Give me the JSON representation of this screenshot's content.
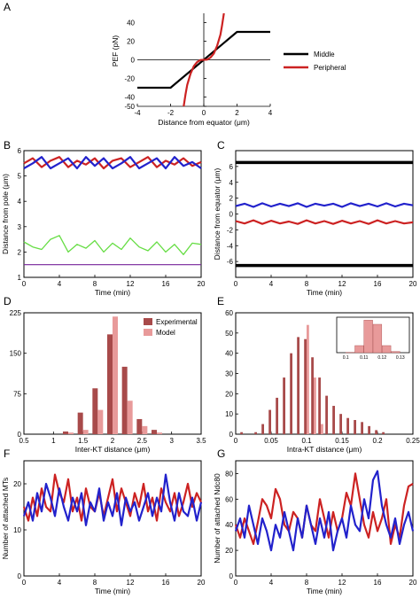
{
  "chart_data": [
    {
      "panel": "A",
      "type": "line",
      "xlabel": "Distance from equator (μm)",
      "ylabel": "PEF (pN)",
      "xlim": [
        -4,
        4
      ],
      "ylim": [
        -50,
        50
      ],
      "xticks": [
        "-4",
        "-2",
        "0",
        "2",
        "4"
      ],
      "yticks": [
        "40",
        "20",
        "0",
        "-20",
        "-40",
        "-50"
      ],
      "legend_position": "right",
      "series": [
        {
          "name": "Middle",
          "color": "#000000",
          "x": [
            -4,
            -2,
            2,
            4
          ],
          "y": [
            -30,
            -30,
            30,
            30
          ]
        },
        {
          "name": "Peripheral",
          "color": "#cc2222",
          "x": [
            -1.21,
            -1.1,
            -1.0,
            -0.8,
            -0.6,
            -0.4,
            -0.2,
            0,
            0.2,
            0.4,
            0.6,
            0.8,
            1.0,
            1.1,
            1.21
          ],
          "y": [
            -50,
            -37,
            -27,
            -15,
            -6.8,
            -2.4,
            -0.2,
            0,
            0.2,
            2.4,
            6.8,
            15,
            27,
            37,
            50
          ]
        }
      ]
    },
    {
      "panel": "B",
      "type": "line",
      "xlabel": "Time (min)",
      "ylabel": "Distance from pole (μm)",
      "xlim": [
        0,
        20
      ],
      "ylim": [
        1,
        6
      ],
      "xticks": [
        "0",
        "4",
        "8",
        "12",
        "16",
        "20"
      ],
      "yticks": [
        "6",
        "5",
        "4",
        "3",
        "2",
        "1"
      ],
      "grid": false,
      "series": [
        {
          "color": "#cc2222",
          "x": [
            0,
            1,
            2,
            3,
            4,
            5,
            6,
            7,
            8,
            9,
            10,
            11,
            12,
            13,
            14,
            15,
            16,
            17,
            18,
            19,
            20
          ],
          "y": [
            5.5,
            5.7,
            5.35,
            5.6,
            5.75,
            5.35,
            5.6,
            5.45,
            5.7,
            5.3,
            5.6,
            5.7,
            5.35,
            5.55,
            5.75,
            5.35,
            5.6,
            5.45,
            5.7,
            5.4,
            5.55
          ]
        },
        {
          "color": "#2222cc",
          "x": [
            0,
            1,
            2,
            3,
            4,
            5,
            6,
            7,
            8,
            9,
            10,
            11,
            12,
            13,
            14,
            15,
            16,
            17,
            18,
            19,
            20
          ],
          "y": [
            5.3,
            5.5,
            5.75,
            5.3,
            5.5,
            5.7,
            5.3,
            5.75,
            5.4,
            5.7,
            5.3,
            5.5,
            5.75,
            5.3,
            5.5,
            5.7,
            5.3,
            5.75,
            5.4,
            5.55,
            5.3
          ]
        },
        {
          "color": "#66dd44",
          "x": [
            0,
            1,
            2,
            3,
            4,
            5,
            6,
            7,
            8,
            9,
            10,
            11,
            12,
            13,
            14,
            15,
            16,
            17,
            18,
            19,
            20
          ],
          "y": [
            2.4,
            2.2,
            2.1,
            2.5,
            2.65,
            2.0,
            2.3,
            2.15,
            2.45,
            2.0,
            2.35,
            2.1,
            2.55,
            2.2,
            2.05,
            2.4,
            2.0,
            2.3,
            1.9,
            2.35,
            2.3
          ]
        },
        {
          "color": "#772299",
          "x": [
            0,
            20
          ],
          "y": [
            1.5,
            1.5
          ]
        }
      ]
    },
    {
      "panel": "C",
      "type": "line",
      "xlabel": "Time (min)",
      "ylabel": "Distance from equator (μm)",
      "xlim": [
        0,
        20
      ],
      "ylim": [
        -8,
        8
      ],
      "xticks": [
        "0",
        "4",
        "8",
        "12",
        "16",
        "20"
      ],
      "yticks": [
        "6",
        "4",
        "2",
        "0",
        "-2",
        "-4",
        "-6"
      ],
      "series": [
        {
          "color": "#000000",
          "x": [
            0,
            20
          ],
          "y": [
            6.5,
            6.5
          ]
        },
        {
          "color": "#000000",
          "x": [
            0,
            20
          ],
          "y": [
            -6.5,
            -6.5
          ]
        },
        {
          "color": "#2222cc",
          "x": [
            0,
            1,
            2,
            3,
            4,
            5,
            6,
            7,
            8,
            9,
            10,
            11,
            12,
            13,
            14,
            15,
            16,
            17,
            18,
            19,
            20
          ],
          "y": [
            1.0,
            1.3,
            0.9,
            1.35,
            0.95,
            1.3,
            1.0,
            1.35,
            0.9,
            1.3,
            1.05,
            1.3,
            0.9,
            1.35,
            1.0,
            1.3,
            0.95,
            1.35,
            0.95,
            1.3,
            1.1
          ]
        },
        {
          "color": "#cc2222",
          "x": [
            0,
            1,
            2,
            3,
            4,
            5,
            6,
            7,
            8,
            9,
            10,
            11,
            12,
            13,
            14,
            15,
            16,
            17,
            18,
            19,
            20
          ],
          "y": [
            -0.9,
            -1.2,
            -0.8,
            -1.25,
            -0.85,
            -1.2,
            -0.95,
            -1.25,
            -0.8,
            -1.2,
            -0.9,
            -1.25,
            -0.85,
            -1.2,
            -0.9,
            -1.25,
            -0.8,
            -1.2,
            -0.9,
            -1.2,
            -1.05
          ]
        }
      ]
    },
    {
      "panel": "D",
      "type": "bar",
      "xlabel": "Inter-KT distance (μm)",
      "ylabel": "",
      "xlim": [
        0.5,
        3.5
      ],
      "ylim": [
        0,
        225
      ],
      "xticks": [
        "0.5",
        "1",
        "1.5",
        "2",
        "2.5",
        "3",
        "3.5"
      ],
      "yticks": [
        "225",
        "150",
        "75",
        "0"
      ],
      "legend_position": "top-right",
      "bins": [
        1.25,
        1.5,
        1.75,
        2.0,
        2.25,
        2.5,
        2.75
      ],
      "series": [
        {
          "name": "Experimental",
          "color": "#a84a4a",
          "values": [
            5,
            40,
            85,
            185,
            125,
            28,
            8
          ]
        },
        {
          "name": "Model",
          "color": "#e89a9a",
          "values": [
            3,
            8,
            45,
            218,
            62,
            15,
            3
          ]
        }
      ]
    },
    {
      "panel": "E",
      "type": "bar",
      "xlabel": "Intra-KT distance (μm)",
      "ylabel": "",
      "xlim": [
        0,
        0.25
      ],
      "ylim": [
        0,
        60
      ],
      "xticks": [
        "0",
        "0.05",
        "0.1",
        "0.15",
        "0.2",
        "0.25"
      ],
      "yticks": [
        "60",
        "50",
        "40",
        "30",
        "20",
        "10",
        "0"
      ],
      "bins": [
        0.01,
        0.02,
        0.03,
        0.04,
        0.05,
        0.06,
        0.07,
        0.08,
        0.09,
        0.1,
        0.11,
        0.12,
        0.13,
        0.14,
        0.15,
        0.16,
        0.17,
        0.18,
        0.19,
        0.2,
        0.21
      ],
      "series": [
        {
          "name": "Experimental",
          "color": "#a84a4a",
          "values": [
            1,
            0,
            1,
            5,
            12,
            18,
            28,
            40,
            48,
            47,
            38,
            28,
            19,
            14,
            10,
            8,
            7,
            6,
            4,
            2,
            1
          ]
        },
        {
          "name": "Model",
          "color": "#e89a9a",
          "values": [
            0,
            0,
            0,
            0,
            0,
            0,
            0,
            0,
            0,
            54,
            28,
            5,
            0,
            0,
            0,
            0,
            0,
            0,
            0,
            0,
            0
          ]
        }
      ],
      "inset": {
        "xticks": [
          "0.1",
          "0.11",
          "0.12",
          "0.13"
        ],
        "bins": [
          0.1,
          0.105,
          0.11,
          0.115,
          0.12,
          0.125
        ],
        "values": [
          0.5,
          12,
          55,
          48,
          12,
          2
        ]
      }
    },
    {
      "panel": "F",
      "type": "line",
      "xlabel": "Time (min)",
      "ylabel": "Number of attached MTs",
      "xlim": [
        0,
        20
      ],
      "ylim": [
        0,
        25
      ],
      "xticks": [
        "0",
        "4",
        "8",
        "12",
        "16",
        "20"
      ],
      "yticks": [
        "20",
        "10",
        "0"
      ],
      "series": [
        {
          "color": "#cc2222",
          "x": [
            0,
            0.5,
            1,
            1.5,
            2,
            2.5,
            3,
            3.5,
            4,
            4.5,
            5,
            5.5,
            6,
            6.5,
            7,
            7.5,
            8,
            8.5,
            9,
            9.5,
            10,
            10.5,
            11,
            11.5,
            12,
            12.5,
            13,
            13.5,
            14,
            14.5,
            15,
            15.5,
            16,
            16.5,
            17,
            17.5,
            18,
            18.5,
            19,
            19.5,
            20
          ],
          "y": [
            15,
            12,
            17,
            13,
            19,
            15,
            14,
            22,
            18,
            16,
            21,
            14,
            17,
            12,
            19,
            15,
            14,
            18,
            13,
            17,
            21,
            14,
            19,
            16,
            13,
            18,
            15,
            20,
            14,
            17,
            12,
            19,
            16,
            14,
            18,
            13,
            16,
            20,
            15,
            18,
            16
          ]
        },
        {
          "color": "#2222cc",
          "x": [
            0,
            0.5,
            1,
            1.5,
            2,
            2.5,
            3,
            3.5,
            4,
            4.5,
            5,
            5.5,
            6,
            6.5,
            7,
            7.5,
            8,
            8.5,
            9,
            9.5,
            10,
            10.5,
            11,
            11.5,
            12,
            12.5,
            13,
            13.5,
            14,
            14.5,
            15,
            15.5,
            16,
            16.5,
            17,
            17.5,
            18,
            18.5,
            19,
            19.5,
            20
          ],
          "y": [
            13,
            16,
            12,
            18,
            14,
            20,
            17,
            13,
            19,
            15,
            12,
            17,
            14,
            18,
            11,
            16,
            14,
            19,
            12,
            16,
            13,
            18,
            11,
            17,
            14,
            16,
            12,
            15,
            18,
            13,
            17,
            14,
            22,
            16,
            12,
            18,
            14,
            13,
            17,
            12,
            16
          ]
        }
      ]
    },
    {
      "panel": "G",
      "type": "line",
      "xlabel": "Time (min)",
      "ylabel": "Number of attached Ndc80",
      "xlim": [
        0,
        20
      ],
      "ylim": [
        0,
        90
      ],
      "xticks": [
        "0",
        "4",
        "8",
        "12",
        "16",
        "20"
      ],
      "yticks": [
        "80",
        "60",
        "40",
        "20",
        "0"
      ],
      "series": [
        {
          "color": "#cc2222",
          "x": [
            0,
            0.5,
            1,
            1.5,
            2,
            2.5,
            3,
            3.5,
            4,
            4.5,
            5,
            5.5,
            6,
            6.5,
            7,
            7.5,
            8,
            8.5,
            9,
            9.5,
            10,
            10.5,
            11,
            11.5,
            12,
            12.5,
            13,
            13.5,
            14,
            14.5,
            15,
            15.5,
            16,
            16.5,
            17,
            17.5,
            18,
            18.5,
            19,
            19.5,
            20
          ],
          "y": [
            40,
            30,
            45,
            35,
            25,
            42,
            60,
            55,
            45,
            68,
            60,
            40,
            35,
            50,
            45,
            30,
            55,
            40,
            35,
            60,
            45,
            30,
            50,
            35,
            45,
            65,
            55,
            80,
            60,
            40,
            30,
            50,
            35,
            45,
            60,
            25,
            40,
            30,
            55,
            70,
            72
          ]
        },
        {
          "color": "#2222cc",
          "x": [
            0,
            0.5,
            1,
            1.5,
            2,
            2.5,
            3,
            3.5,
            4,
            4.5,
            5,
            5.5,
            6,
            6.5,
            7,
            7.5,
            8,
            8.5,
            9,
            9.5,
            10,
            10.5,
            11,
            11.5,
            12,
            12.5,
            13,
            13.5,
            14,
            14.5,
            15,
            15.5,
            16,
            16.5,
            17,
            17.5,
            18,
            18.5,
            19,
            19.5,
            20
          ],
          "y": [
            35,
            45,
            30,
            55,
            40,
            25,
            45,
            35,
            20,
            40,
            30,
            50,
            35,
            20,
            45,
            30,
            55,
            40,
            25,
            45,
            30,
            50,
            20,
            35,
            45,
            30,
            55,
            40,
            35,
            60,
            45,
            75,
            82,
            55,
            40,
            30,
            45,
            25,
            40,
            50,
            35
          ]
        }
      ]
    }
  ]
}
